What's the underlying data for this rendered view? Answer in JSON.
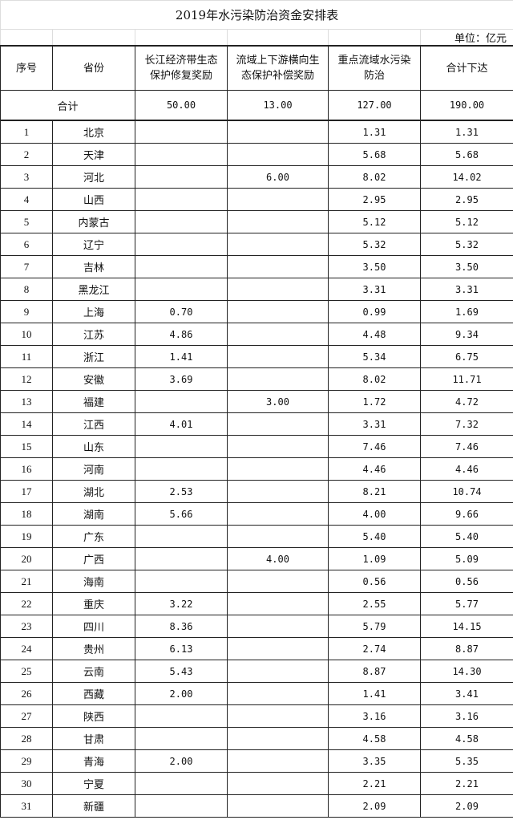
{
  "title": "2019年水污染防治资金安排表",
  "unit": "单位：亿元",
  "headers": [
    "序号",
    "省份",
    "长江经济带生态保护修复奖励",
    "流域上下游横向生态保护补偿奖励",
    "重点流域水污染防治",
    "合计下达"
  ],
  "total": {
    "label": "合计",
    "yangtze": "50.00",
    "basin": "13.00",
    "key": "127.00",
    "sum": "190.00"
  },
  "rows": [
    [
      "1",
      "北京",
      "",
      "",
      "1.31",
      "1.31"
    ],
    [
      "2",
      "天津",
      "",
      "",
      "5.68",
      "5.68"
    ],
    [
      "3",
      "河北",
      "",
      "6.00",
      "8.02",
      "14.02"
    ],
    [
      "4",
      "山西",
      "",
      "",
      "2.95",
      "2.95"
    ],
    [
      "5",
      "内蒙古",
      "",
      "",
      "5.12",
      "5.12"
    ],
    [
      "6",
      "辽宁",
      "",
      "",
      "5.32",
      "5.32"
    ],
    [
      "7",
      "吉林",
      "",
      "",
      "3.50",
      "3.50"
    ],
    [
      "8",
      "黑龙江",
      "",
      "",
      "3.31",
      "3.31"
    ],
    [
      "9",
      "上海",
      "0.70",
      "",
      "0.99",
      "1.69"
    ],
    [
      "10",
      "江苏",
      "4.86",
      "",
      "4.48",
      "9.34"
    ],
    [
      "11",
      "浙江",
      "1.41",
      "",
      "5.34",
      "6.75"
    ],
    [
      "12",
      "安徽",
      "3.69",
      "",
      "8.02",
      "11.71"
    ],
    [
      "13",
      "福建",
      "",
      "3.00",
      "1.72",
      "4.72"
    ],
    [
      "14",
      "江西",
      "4.01",
      "",
      "3.31",
      "7.32"
    ],
    [
      "15",
      "山东",
      "",
      "",
      "7.46",
      "7.46"
    ],
    [
      "16",
      "河南",
      "",
      "",
      "4.46",
      "4.46"
    ],
    [
      "17",
      "湖北",
      "2.53",
      "",
      "8.21",
      "10.74"
    ],
    [
      "18",
      "湖南",
      "5.66",
      "",
      "4.00",
      "9.66"
    ],
    [
      "19",
      "广东",
      "",
      "",
      "5.40",
      "5.40"
    ],
    [
      "20",
      "广西",
      "",
      "4.00",
      "1.09",
      "5.09"
    ],
    [
      "21",
      "海南",
      "",
      "",
      "0.56",
      "0.56"
    ],
    [
      "22",
      "重庆",
      "3.22",
      "",
      "2.55",
      "5.77"
    ],
    [
      "23",
      "四川",
      "8.36",
      "",
      "5.79",
      "14.15"
    ],
    [
      "24",
      "贵州",
      "6.13",
      "",
      "2.74",
      "8.87"
    ],
    [
      "25",
      "云南",
      "5.43",
      "",
      "8.87",
      "14.30"
    ],
    [
      "26",
      "西藏",
      "2.00",
      "",
      "1.41",
      "3.41"
    ],
    [
      "27",
      "陕西",
      "",
      "",
      "3.16",
      "3.16"
    ],
    [
      "28",
      "甘肃",
      "",
      "",
      "4.58",
      "4.58"
    ],
    [
      "29",
      "青海",
      "2.00",
      "",
      "3.35",
      "5.35"
    ],
    [
      "30",
      "宁夏",
      "",
      "",
      "2.21",
      "2.21"
    ],
    [
      "31",
      "新疆",
      "",
      "",
      "2.09",
      "2.09"
    ]
  ]
}
